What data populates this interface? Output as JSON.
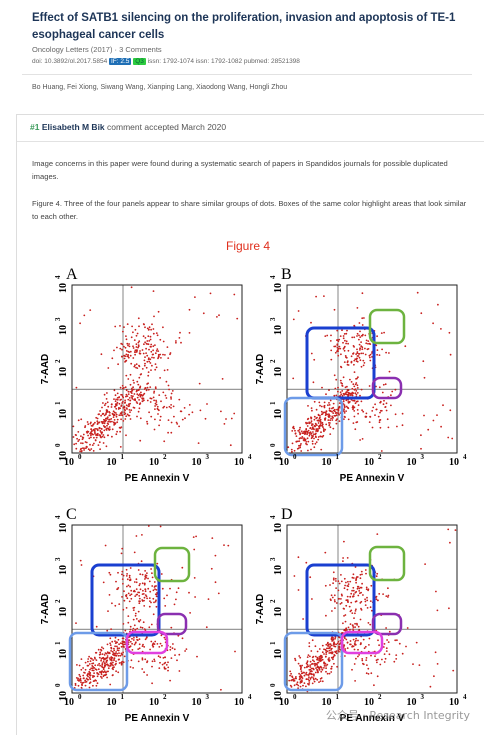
{
  "article": {
    "title": "Effect of SATB1 silencing on the proliferation, invasion and apoptosis of TE-1 esophageal cancer cells",
    "journal": "Oncology Letters (2017)",
    "comments": "3 Comments",
    "doi": "doi: 10.3892/ol.2017.5854",
    "impact_factor": "IF: 2.5",
    "quartile": "Q3",
    "issn_print": "issn: 1792-1074",
    "issn_online": "issn: 1792-1082",
    "pubmed": "pubmed: 28521398",
    "authors": "Bo Huang, Fei Xiong, Siwang Wang, Xianping Lang, Xiaodong Wang, Hongli Zhou"
  },
  "comment": {
    "number": "#1",
    "author": "Elisabeth M Bik",
    "status": "comment accepted March 2020",
    "paragraphs": [
      "Image concerns in this paper were found during a systematic search of papers in Spandidos journals for possible duplicated images.",
      "Figure 4. Three of the four panels appear to share similar groups of dots. Boxes of the same color highlight areas that look similar to each other."
    ]
  },
  "figure": {
    "title": "Figure 4",
    "panels": [
      "A",
      "B",
      "C",
      "D"
    ],
    "x_axis_label": "PE Annexin V",
    "y_axis_label": "7-AAD",
    "tick_base": "10",
    "tick_exponents": [
      "0",
      "1",
      "2",
      "3",
      "4"
    ]
  },
  "watermark": "公众号 · Research Integrity"
}
